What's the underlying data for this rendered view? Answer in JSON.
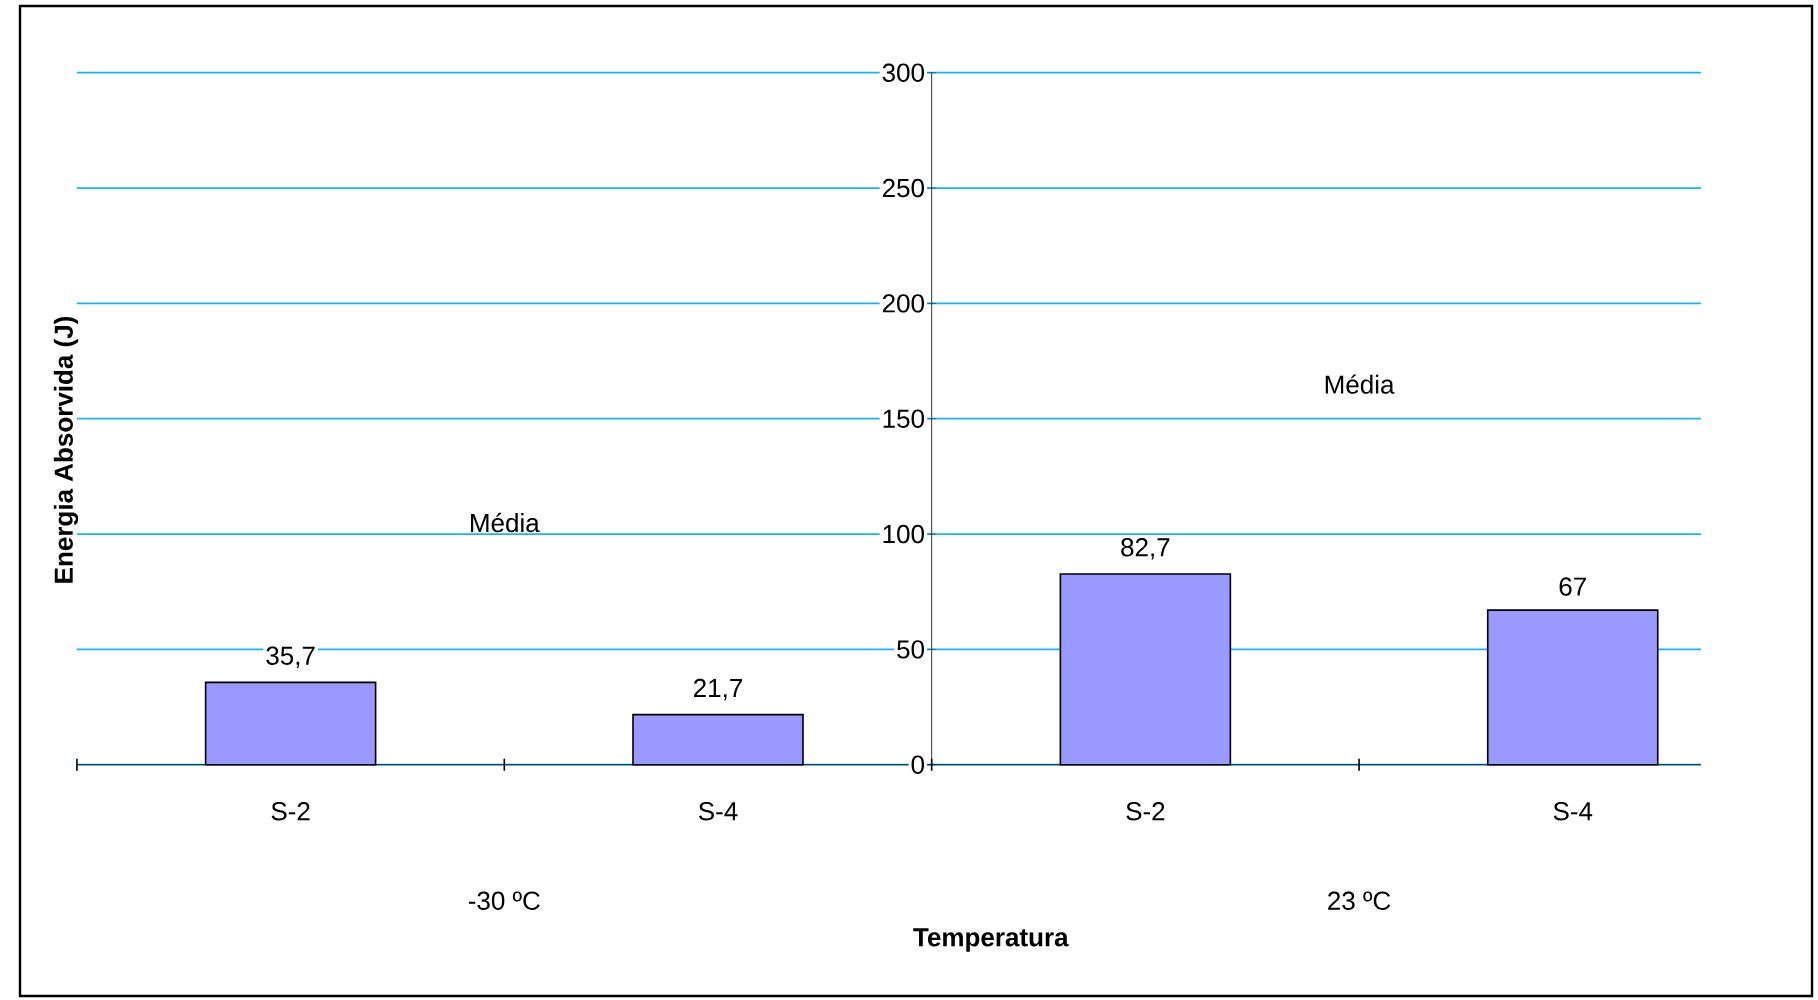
{
  "chart_data": {
    "type": "bar",
    "xlabel": "Temperatura",
    "ylabel": "Energia Absorvida (J)",
    "categories": [
      "S-2",
      "S-4",
      "S-2",
      "S-4"
    ],
    "values": [
      35.7,
      21.7,
      82.7,
      67
    ],
    "value_labels": [
      "35,7",
      "21,7",
      "82,7",
      "67"
    ],
    "color": "#9999ff",
    "ylim": [
      0,
      300
    ],
    "yticks": [
      0,
      50,
      100,
      150,
      200,
      250,
      300
    ],
    "grid": "y",
    "annotations": [
      "Média",
      "Média",
      "-30 ºC",
      "23 ºC"
    ]
  }
}
